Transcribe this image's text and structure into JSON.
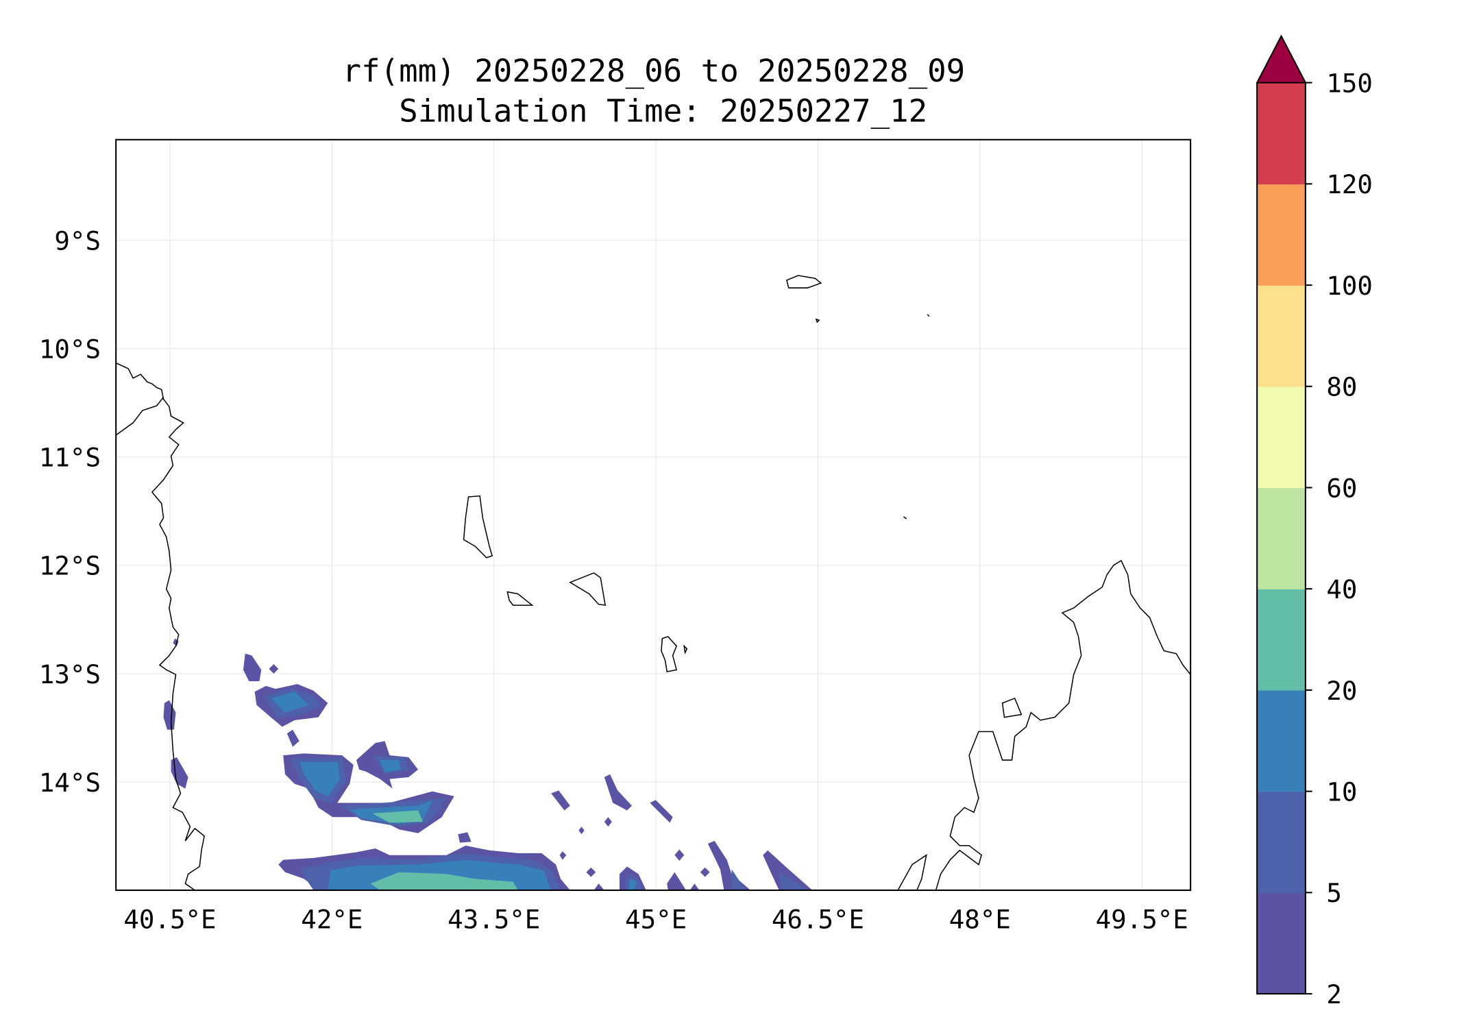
{
  "chart_data": {
    "type": "heatmap",
    "subtype": "filled-contour-map",
    "title": "rf(mm) 20250228_06 to 20250228_09",
    "subtitle": "Simulation Time: 20250227_12",
    "variable": "rf(mm)",
    "xlim": [
      40.0,
      49.95
    ],
    "ylim": [
      -15.0,
      -8.07
    ],
    "x_ticks": [
      40.5,
      42,
      43.5,
      45,
      46.5,
      48,
      49.5
    ],
    "x_tick_labels": [
      "40.5°E",
      "42°E",
      "43.5°E",
      "45°E",
      "46.5°E",
      "48°E",
      "49.5°E"
    ],
    "y_ticks": [
      -9,
      -10,
      -11,
      -12,
      -13,
      -14
    ],
    "y_tick_labels": [
      "9°S",
      "10°S",
      "11°S",
      "12°S",
      "13°S",
      "14°S"
    ],
    "grid": true,
    "colorbar": {
      "position": "right",
      "extend": "max",
      "levels": [
        2,
        5,
        10,
        20,
        40,
        60,
        80,
        100,
        120,
        150
      ],
      "tick_labels": [
        "2",
        "5",
        "10",
        "20",
        "40",
        "60",
        "80",
        "100",
        "120",
        "150"
      ],
      "colors": [
        "#5b53a4",
        "#4d62ab",
        "#3780b9",
        "#62bea8",
        "#bde4a0",
        "#f3fab0",
        "#fde08d",
        "#f99d59",
        "#d53e4f"
      ],
      "over_color": "#9e0142"
    },
    "max_contour_level_present": "20-40"
  }
}
